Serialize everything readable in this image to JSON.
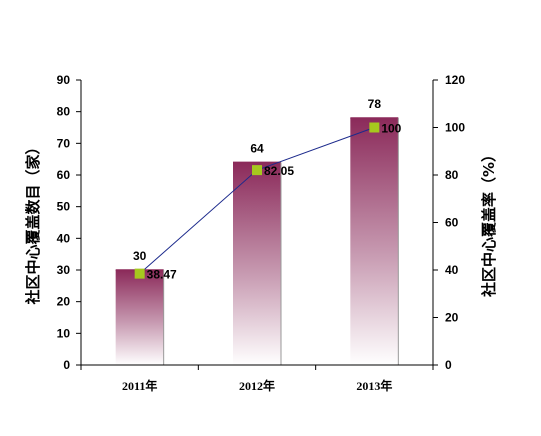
{
  "chart_data": {
    "type": "bar",
    "categories": [
      "2011年",
      "2012年",
      "2013年"
    ],
    "series": [
      {
        "values": [
          30,
          64,
          78
        ],
        "axis": "left",
        "kind": "bar"
      },
      {
        "values": [
          38.47,
          82.05,
          100
        ],
        "axis": "right",
        "kind": "line"
      }
    ],
    "y_left": {
      "label": "社区中心覆盖数目（家）",
      "ylim": [
        0,
        90
      ],
      "ticks": [
        0,
        10,
        20,
        30,
        40,
        50,
        60,
        70,
        80,
        90
      ]
    },
    "y_right": {
      "label": "社区中心覆盖率（%）",
      "ylim": [
        0,
        120
      ],
      "ticks": [
        0,
        20,
        40,
        60,
        80,
        100,
        120
      ]
    },
    "bar_labels": [
      "30",
      "64",
      "78"
    ],
    "line_labels": [
      "38.47",
      "82.05",
      "100"
    ],
    "grid": false,
    "legend": "none",
    "colors": {
      "bar_top": "#8b2a5a",
      "bar_bottom": "#ffffff",
      "line": "#1c2a8c",
      "marker": "#a6c81e",
      "axis": "#000000"
    }
  }
}
